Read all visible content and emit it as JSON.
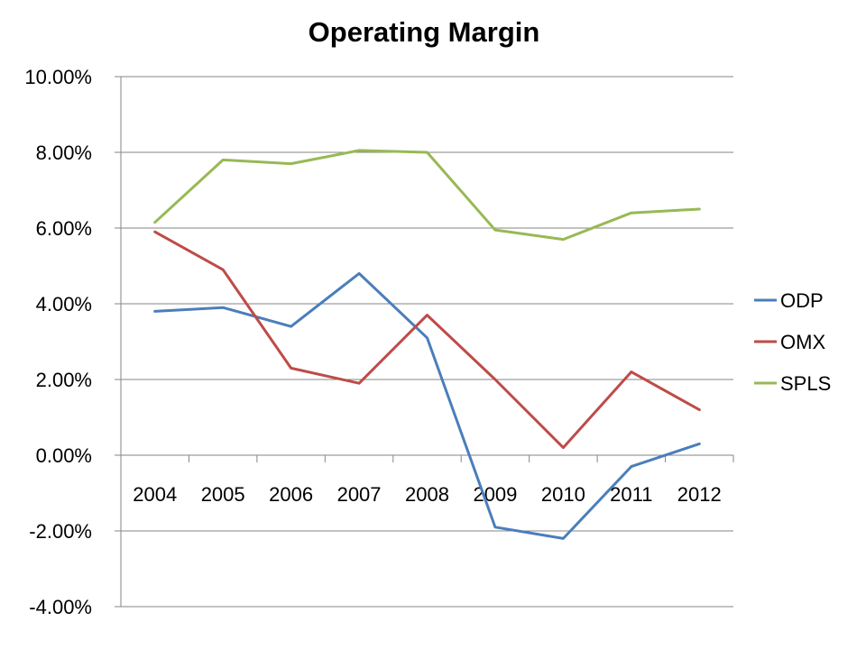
{
  "chart_data": {
    "type": "line",
    "title": "Operating Margin",
    "xlabel": "",
    "ylabel": "",
    "categories": [
      "2004",
      "2005",
      "2006",
      "2007",
      "2008",
      "2009",
      "2010",
      "2011",
      "2012"
    ],
    "ylim": [
      -4,
      10
    ],
    "y_tick_values": [
      -4,
      -2,
      0,
      2,
      4,
      6,
      8,
      10
    ],
    "y_tick_labels": [
      "-4.00%",
      "-2.00%",
      "0.00%",
      "2.00%",
      "4.00%",
      "6.00%",
      "8.00%",
      "10.00%"
    ],
    "grid": true,
    "legend_position": "right",
    "series": [
      {
        "name": "ODP",
        "color": "#4a7ebb",
        "values": [
          3.8,
          3.9,
          3.4,
          4.8,
          3.1,
          -1.9,
          -2.2,
          -0.3,
          0.3
        ]
      },
      {
        "name": "OMX",
        "color": "#be4b48",
        "values": [
          5.9,
          4.9,
          2.3,
          1.9,
          3.7,
          2.0,
          0.2,
          2.2,
          1.2
        ]
      },
      {
        "name": "SPLS",
        "color": "#98b954",
        "values": [
          6.15,
          7.8,
          7.7,
          8.05,
          8.0,
          5.95,
          5.7,
          6.4,
          6.5
        ]
      }
    ]
  }
}
